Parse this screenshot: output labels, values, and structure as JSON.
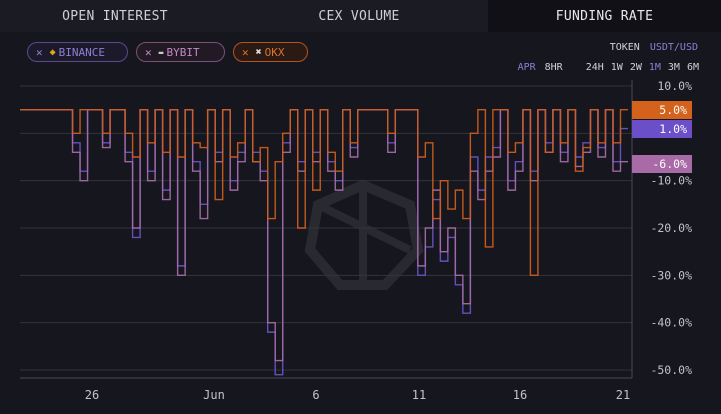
{
  "tabs": [
    {
      "label": "OPEN INTEREST"
    },
    {
      "label": "CEX VOLUME"
    },
    {
      "label": "FUNDING RATE",
      "active": true
    }
  ],
  "exchanges": [
    {
      "label": "BINANCE",
      "icon": "binance-icon",
      "color": "#8f7fd6"
    },
    {
      "label": "BYBIT",
      "icon": "bybit-icon",
      "color": "#c48ac4"
    },
    {
      "label": "OKX",
      "icon": "okx-icon",
      "color": "#e0722c"
    }
  ],
  "controls": {
    "token_label": "TOKEN",
    "token_value": "USDT/USD",
    "apr": "APR",
    "hr8": "8HR",
    "ranges": [
      "24H",
      "1W",
      "2W",
      "1M",
      "3M",
      "6M"
    ],
    "active_range": "1M"
  },
  "chart_data": {
    "type": "line",
    "y_ticks": [
      "10.0%",
      "0.0%",
      "-10.0%",
      "-20.0%",
      "-30.0%",
      "-40.0%",
      "-50.0%"
    ],
    "x_ticks": [
      "26",
      "Jun",
      "6",
      "11",
      "16",
      "21"
    ],
    "ylim": [
      -52,
      12
    ],
    "current_values": [
      {
        "series": "OKX",
        "label": "5.0%",
        "value": 5.0,
        "color": "#d4621c"
      },
      {
        "series": "BINANCE",
        "label": "1.0%",
        "value": 1.0,
        "color": "#6b4fc8"
      },
      {
        "series": "BYBIT",
        "label": "-6.0%",
        "value": -6.0,
        "color": "#a96aa8"
      }
    ],
    "series": [
      {
        "name": "BINANCE",
        "color": "#6a52c6",
        "points": [
          [
            0,
            5
          ],
          [
            1,
            5
          ],
          [
            2,
            5
          ],
          [
            3,
            5
          ],
          [
            4,
            5
          ],
          [
            5,
            5
          ],
          [
            6,
            5
          ],
          [
            7,
            5
          ],
          [
            8,
            -2
          ],
          [
            9,
            -8
          ],
          [
            10,
            5
          ],
          [
            11,
            5
          ],
          [
            12,
            -2
          ],
          [
            13,
            5
          ],
          [
            14,
            5
          ],
          [
            15,
            -4
          ],
          [
            16,
            -22
          ],
          [
            17,
            5
          ],
          [
            18,
            -8
          ],
          [
            19,
            5
          ],
          [
            20,
            -12
          ],
          [
            21,
            5
          ],
          [
            22,
            -28
          ],
          [
            23,
            5
          ],
          [
            24,
            -6
          ],
          [
            25,
            -15
          ],
          [
            26,
            5
          ],
          [
            27,
            -4
          ],
          [
            28,
            5
          ],
          [
            29,
            -10
          ],
          [
            30,
            -4
          ],
          [
            31,
            5
          ],
          [
            32,
            -4
          ],
          [
            33,
            -8
          ],
          [
            34,
            -42
          ],
          [
            35,
            -51
          ],
          [
            36,
            -2
          ],
          [
            37,
            5
          ],
          [
            38,
            -6
          ],
          [
            39,
            5
          ],
          [
            40,
            -4
          ],
          [
            41,
            5
          ],
          [
            42,
            -6
          ],
          [
            43,
            -10
          ],
          [
            44,
            5
          ],
          [
            45,
            -3
          ],
          [
            46,
            5
          ],
          [
            47,
            5
          ],
          [
            48,
            5
          ],
          [
            49,
            5
          ],
          [
            50,
            -2
          ],
          [
            51,
            5
          ],
          [
            52,
            5
          ],
          [
            53,
            5
          ],
          [
            54,
            -30
          ],
          [
            55,
            -24
          ],
          [
            56,
            -14
          ],
          [
            57,
            -27
          ],
          [
            58,
            -22
          ],
          [
            59,
            -32
          ],
          [
            60,
            -38
          ],
          [
            61,
            -5
          ],
          [
            62,
            -12
          ],
          [
            63,
            -5
          ],
          [
            64,
            -3
          ],
          [
            65,
            5
          ],
          [
            66,
            -10
          ],
          [
            67,
            -6
          ],
          [
            68,
            5
          ],
          [
            69,
            -8
          ],
          [
            70,
            5
          ],
          [
            71,
            -2
          ],
          [
            72,
            5
          ],
          [
            73,
            -4
          ],
          [
            74,
            5
          ],
          [
            75,
            -5
          ],
          [
            76,
            -2
          ],
          [
            77,
            5
          ],
          [
            78,
            -3
          ],
          [
            79,
            5
          ],
          [
            80,
            -6
          ],
          [
            81,
            1
          ]
        ]
      },
      {
        "name": "BYBIT",
        "color": "#a56aa6",
        "points": [
          [
            0,
            5
          ],
          [
            1,
            5
          ],
          [
            2,
            5
          ],
          [
            3,
            5
          ],
          [
            4,
            5
          ],
          [
            5,
            5
          ],
          [
            6,
            5
          ],
          [
            7,
            5
          ],
          [
            8,
            -4
          ],
          [
            9,
            -10
          ],
          [
            10,
            5
          ],
          [
            11,
            5
          ],
          [
            12,
            -3
          ],
          [
            13,
            5
          ],
          [
            14,
            5
          ],
          [
            15,
            -6
          ],
          [
            16,
            -20
          ],
          [
            17,
            5
          ],
          [
            18,
            -10
          ],
          [
            19,
            5
          ],
          [
            20,
            -14
          ],
          [
            21,
            5
          ],
          [
            22,
            -30
          ],
          [
            23,
            5
          ],
          [
            24,
            -8
          ],
          [
            25,
            -18
          ],
          [
            26,
            5
          ],
          [
            27,
            -6
          ],
          [
            28,
            5
          ],
          [
            29,
            -12
          ],
          [
            30,
            -6
          ],
          [
            31,
            5
          ],
          [
            32,
            -6
          ],
          [
            33,
            -10
          ],
          [
            34,
            -40
          ],
          [
            35,
            -48
          ],
          [
            36,
            -4
          ],
          [
            37,
            5
          ],
          [
            38,
            -8
          ],
          [
            39,
            5
          ],
          [
            40,
            -6
          ],
          [
            41,
            5
          ],
          [
            42,
            -8
          ],
          [
            43,
            -12
          ],
          [
            44,
            5
          ],
          [
            45,
            -5
          ],
          [
            46,
            5
          ],
          [
            47,
            5
          ],
          [
            48,
            5
          ],
          [
            49,
            5
          ],
          [
            50,
            -4
          ],
          [
            51,
            5
          ],
          [
            52,
            5
          ],
          [
            53,
            5
          ],
          [
            54,
            -28
          ],
          [
            55,
            -20
          ],
          [
            56,
            -12
          ],
          [
            57,
            -25
          ],
          [
            58,
            -20
          ],
          [
            59,
            -30
          ],
          [
            60,
            -36
          ],
          [
            61,
            -8
          ],
          [
            62,
            -14
          ],
          [
            63,
            -8
          ],
          [
            64,
            -5
          ],
          [
            65,
            5
          ],
          [
            66,
            -12
          ],
          [
            67,
            -8
          ],
          [
            68,
            5
          ],
          [
            69,
            -10
          ],
          [
            70,
            5
          ],
          [
            71,
            -4
          ],
          [
            72,
            5
          ],
          [
            73,
            -6
          ],
          [
            74,
            5
          ],
          [
            75,
            -7
          ],
          [
            76,
            -4
          ],
          [
            77,
            5
          ],
          [
            78,
            -5
          ],
          [
            79,
            5
          ],
          [
            80,
            -8
          ],
          [
            81,
            -6
          ]
        ]
      },
      {
        "name": "OKX",
        "color": "#cf5d1c",
        "points": [
          [
            0,
            5
          ],
          [
            1,
            5
          ],
          [
            2,
            5
          ],
          [
            3,
            5
          ],
          [
            4,
            5
          ],
          [
            5,
            5
          ],
          [
            6,
            5
          ],
          [
            7,
            5
          ],
          [
            8,
            0
          ],
          [
            9,
            5
          ],
          [
            10,
            5
          ],
          [
            11,
            5
          ],
          [
            12,
            0
          ],
          [
            13,
            5
          ],
          [
            14,
            5
          ],
          [
            15,
            0
          ],
          [
            16,
            -5
          ],
          [
            17,
            5
          ],
          [
            18,
            -2
          ],
          [
            19,
            5
          ],
          [
            20,
            -4
          ],
          [
            21,
            5
          ],
          [
            22,
            -5
          ],
          [
            23,
            5
          ],
          [
            24,
            -2
          ],
          [
            25,
            -3
          ],
          [
            26,
            5
          ],
          [
            27,
            -14
          ],
          [
            28,
            5
          ],
          [
            29,
            -5
          ],
          [
            30,
            -2
          ],
          [
            31,
            5
          ],
          [
            32,
            -6
          ],
          [
            33,
            -3
          ],
          [
            34,
            -18
          ],
          [
            35,
            -6
          ],
          [
            36,
            0
          ],
          [
            37,
            5
          ],
          [
            38,
            -20
          ],
          [
            39,
            5
          ],
          [
            40,
            -12
          ],
          [
            41,
            5
          ],
          [
            42,
            -4
          ],
          [
            43,
            -8
          ],
          [
            44,
            5
          ],
          [
            45,
            -2
          ],
          [
            46,
            5
          ],
          [
            47,
            5
          ],
          [
            48,
            5
          ],
          [
            49,
            5
          ],
          [
            50,
            0
          ],
          [
            51,
            5
          ],
          [
            52,
            5
          ],
          [
            53,
            5
          ],
          [
            54,
            -5
          ],
          [
            55,
            -2
          ],
          [
            56,
            -18
          ],
          [
            57,
            -10
          ],
          [
            58,
            -16
          ],
          [
            59,
            -12
          ],
          [
            60,
            -18
          ],
          [
            61,
            0
          ],
          [
            62,
            5
          ],
          [
            63,
            -24
          ],
          [
            64,
            5
          ],
          [
            65,
            5
          ],
          [
            66,
            -4
          ],
          [
            67,
            -2
          ],
          [
            68,
            5
          ],
          [
            69,
            -30
          ],
          [
            70,
            5
          ],
          [
            71,
            -4
          ],
          [
            72,
            5
          ],
          [
            73,
            -2
          ],
          [
            74,
            5
          ],
          [
            75,
            -8
          ],
          [
            76,
            -3
          ],
          [
            77,
            5
          ],
          [
            78,
            -2
          ],
          [
            79,
            5
          ],
          [
            80,
            -2
          ],
          [
            81,
            5
          ]
        ]
      }
    ]
  }
}
